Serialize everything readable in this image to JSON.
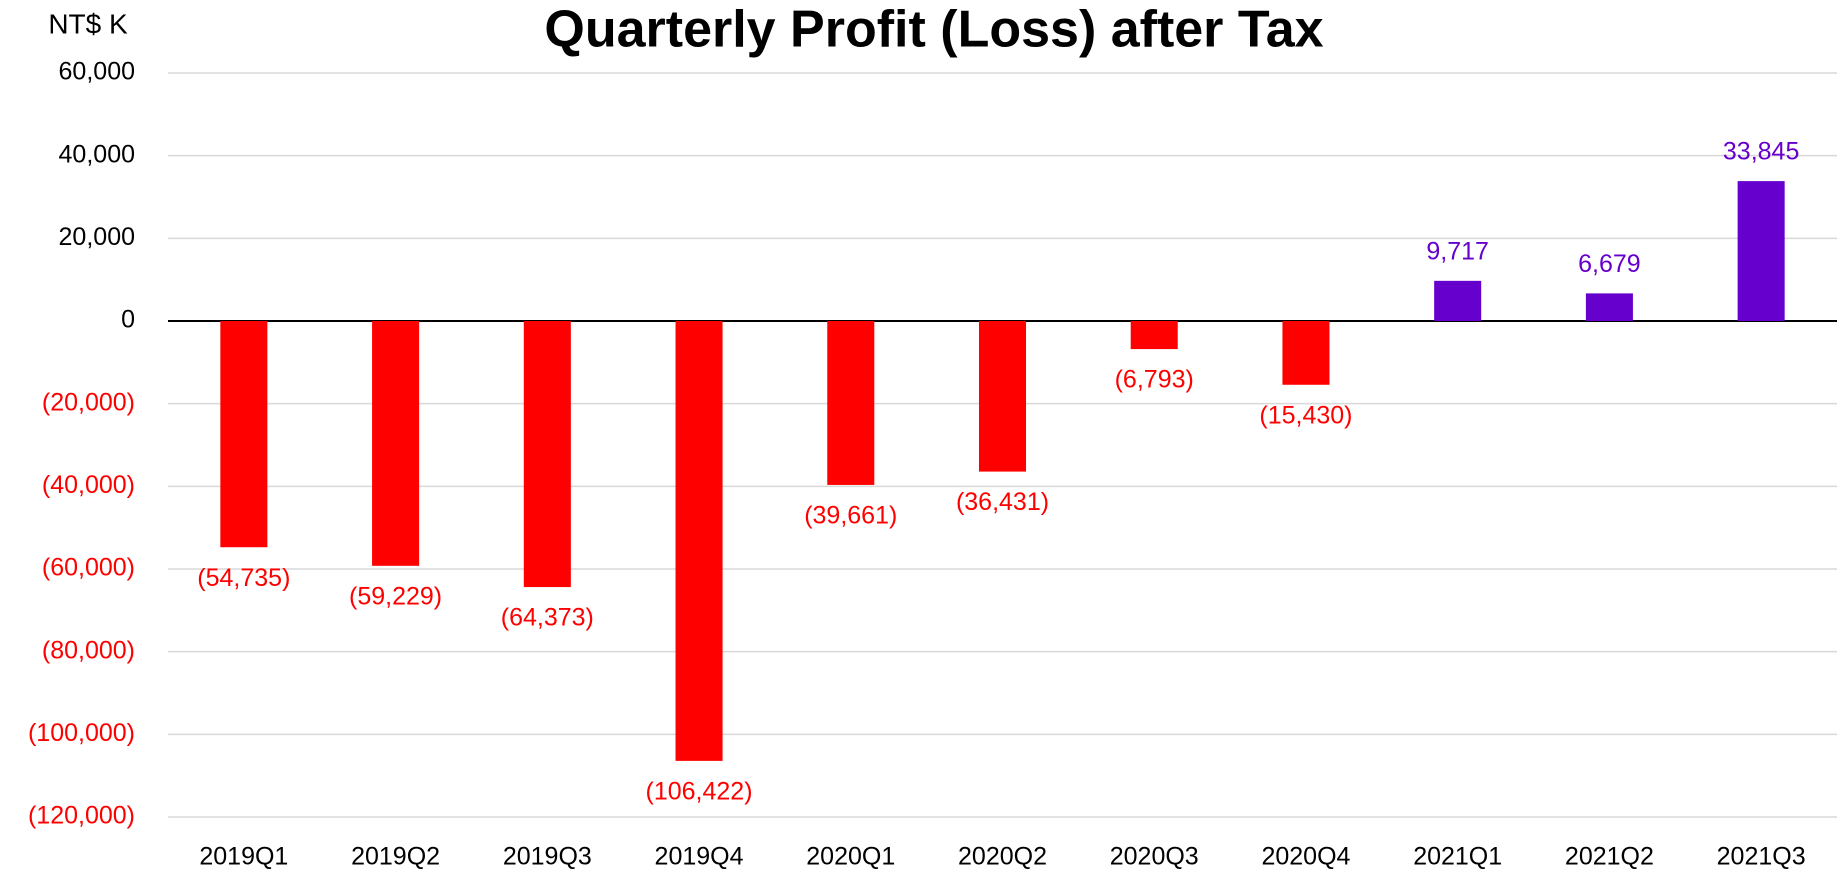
{
  "chart_data": {
    "type": "bar",
    "title": "Quarterly  Profit (Loss) after Tax",
    "y_unit": "NT$ K",
    "categories": [
      "2019Q1",
      "2019Q2",
      "2019Q3",
      "2019Q4",
      "2020Q1",
      "2020Q2",
      "2020Q3",
      "2020Q4",
      "2021Q1",
      "2021Q2",
      "2021Q3"
    ],
    "values": [
      -54735,
      -59229,
      -64373,
      -106422,
      -39661,
      -36431,
      -6793,
      -15430,
      9717,
      6679,
      33845
    ],
    "value_labels": [
      "(54,735)",
      "(59,229)",
      "(64,373)",
      "(106,422)",
      "(39,661)",
      "(36,431)",
      "(6,793)",
      "(15,430)",
      "9,717",
      "6,679",
      "33,845"
    ],
    "colors": {
      "negative": "#ff0000",
      "positive": "#6600cc"
    },
    "ylim": [
      -120000,
      60000
    ],
    "yticks": [
      {
        "value": -120000,
        "label": "(120,000)"
      },
      {
        "value": -100000,
        "label": "(100,000)"
      },
      {
        "value": -80000,
        "label": "(80,000)"
      },
      {
        "value": -60000,
        "label": "(60,000)"
      },
      {
        "value": -40000,
        "label": "(40,000)"
      },
      {
        "value": -20000,
        "label": "(20,000)"
      },
      0,
      {
        "value": 20000,
        "label": "20,000"
      },
      {
        "value": 40000,
        "label": "40,000"
      },
      {
        "value": 60000,
        "label": "60,000"
      }
    ],
    "grid": true
  }
}
